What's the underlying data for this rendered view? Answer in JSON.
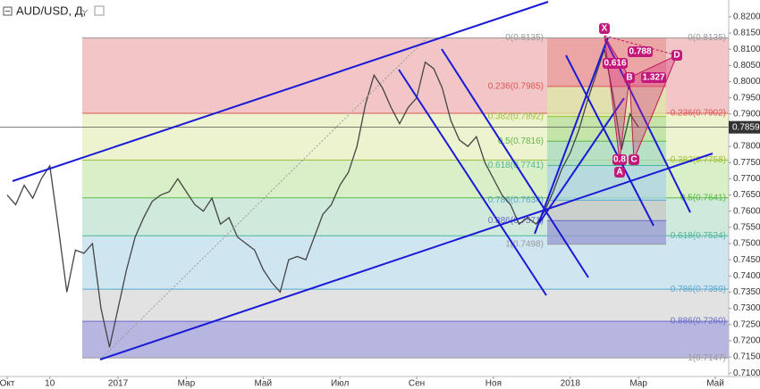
{
  "chart_data": {
    "type": "line",
    "title": "AUD/USD, Д,",
    "categories": [
      "Окт",
      null,
      null,
      null,
      null,
      "10",
      null,
      null,
      null,
      null,
      null,
      null,
      null,
      "2017",
      null,
      null,
      null,
      null,
      null,
      null,
      null,
      "Мар",
      null,
      null,
      null,
      null,
      null,
      null,
      null,
      null,
      "Май",
      null,
      null,
      null,
      null,
      null,
      null,
      null,
      null,
      "Июл",
      null,
      null,
      null,
      null,
      null,
      null,
      null,
      null,
      "Сен",
      null,
      null,
      null,
      null,
      null,
      null,
      null,
      null,
      "Ноя",
      null,
      null,
      null,
      null,
      null,
      null,
      null,
      null,
      "2018",
      null,
      null,
      null,
      null,
      null,
      null,
      null,
      "Мар",
      null,
      null,
      null,
      null,
      null,
      null,
      null,
      null,
      "Май"
    ],
    "series": [
      {
        "color": "#444444",
        "values": [
          0.765,
          0.762,
          0.768,
          0.764,
          0.77,
          0.774,
          0.755,
          0.735,
          0.748,
          0.747,
          0.75,
          0.73,
          0.718,
          0.73,
          0.742,
          0.752,
          0.758,
          0.763,
          0.765,
          0.766,
          0.77,
          0.766,
          0.762,
          0.76,
          0.764,
          0.756,
          0.758,
          0.752,
          0.75,
          0.748,
          0.742,
          0.738,
          0.735,
          0.745,
          0.746,
          0.745,
          0.752,
          0.759,
          0.762,
          0.768,
          0.772,
          0.78,
          0.793,
          0.802,
          0.798,
          0.792,
          0.787,
          0.792,
          0.795,
          0.806,
          0.804,
          0.798,
          0.788,
          0.782,
          0.78,
          0.783,
          0.775,
          0.77,
          0.765,
          0.762,
          0.756,
          0.758,
          0.756,
          0.76,
          0.766,
          0.773,
          0.778,
          0.785,
          0.794,
          0.802,
          0.81,
          0.796,
          0.779,
          0.79,
          0.7859,
          null,
          null,
          null,
          null,
          null,
          null,
          null,
          null,
          null
        ]
      }
    ],
    "ylim": [
      0.7095,
      0.8252
    ],
    "yticks": [
      {
        "value": 0.82,
        "label": "0.8200"
      },
      {
        "value": 0.815,
        "label": "0.8150"
      },
      {
        "value": 0.81,
        "label": "0.8100"
      },
      {
        "value": 0.805,
        "label": "0.8050"
      },
      {
        "value": 0.8,
        "label": "0.8000"
      },
      {
        "value": 0.795,
        "label": "0.7950"
      },
      {
        "value": 0.79,
        "label": "0.7900"
      },
      {
        "value": 0.785,
        "label": "0.7850"
      },
      {
        "value": 0.78,
        "label": "0.7800"
      },
      {
        "value": 0.775,
        "label": "0.7750"
      },
      {
        "value": 0.77,
        "label": "0.7700"
      },
      {
        "value": 0.765,
        "label": "0.7650"
      },
      {
        "value": 0.76,
        "label": "0.7600"
      },
      {
        "value": 0.755,
        "label": "0.7550"
      },
      {
        "value": 0.75,
        "label": "0.7500"
      },
      {
        "value": 0.745,
        "label": "0.7450"
      },
      {
        "value": 0.74,
        "label": "0.7400"
      },
      {
        "value": 0.735,
        "label": "0.7350"
      },
      {
        "value": 0.73,
        "label": "0.7300"
      },
      {
        "value": 0.725,
        "label": "0.7250"
      },
      {
        "value": 0.72,
        "label": "0.7200"
      },
      {
        "value": 0.715,
        "label": "0.7150"
      },
      {
        "value": 0.71,
        "label": "0.7100"
      }
    ],
    "last_price": {
      "value": 0.7859,
      "label": "0.7859"
    },
    "fib_main": {
      "levels": [
        {
          "value": 0.8135,
          "label": "0(0.8135)"
        },
        {
          "value": 0.7902,
          "label": "0.236(0.7902)"
        },
        {
          "value": 0.7758,
          "label": "0.382(0.7758)"
        },
        {
          "value": 0.7641,
          "label": "0.5(0.7641)"
        },
        {
          "value": 0.7524,
          "label": "0.618(0.7524)"
        },
        {
          "value": 0.7359,
          "label": "0.786(0.7359)"
        },
        {
          "value": 0.726,
          "label": "0.886(0.7260)"
        },
        {
          "value": 0.7147,
          "label": "1(0.7147)"
        }
      ],
      "line_colors": [
        "#999999",
        "#e05555",
        "#9cbf3a",
        "#5cb84a",
        "#4fb59a",
        "#5aa8d0",
        "#6a6acc",
        "#999999"
      ],
      "band_colors": [
        "#f2c6c6",
        "#eef3cf",
        "#d9efc7",
        "#cfeadc",
        "#cfe6f1",
        "#e2e2e2",
        "#b6b6e0"
      ]
    },
    "fib_inner": {
      "levels": [
        {
          "value": 0.8135,
          "label": "0(0.8135)"
        },
        {
          "value": 0.7985,
          "label": "0.236(0.7985)"
        },
        {
          "value": 0.7892,
          "label": "0.382(0.7892)"
        },
        {
          "value": 0.7816,
          "label": "0.5(0.7816)"
        },
        {
          "value": 0.7741,
          "label": "0.618(0.7741)"
        },
        {
          "value": 0.7634,
          "label": "0.786(0.7634)"
        },
        {
          "value": 0.7571,
          "label": "0.886(0.7571)"
        },
        {
          "value": 0.7498,
          "label": "1(0.7498)"
        }
      ],
      "line_colors": [
        "#999999",
        "#e05555",
        "#9cbf3a",
        "#5cb84a",
        "#4fb59a",
        "#5aa8d0",
        "#6a6acc",
        "#999999"
      ],
      "band_colors": [
        "#e99a9a",
        "#dbe8a6",
        "#b5df9c",
        "#a6d9c0",
        "#a9d3e6",
        "#c8c8c8",
        "#9898d2"
      ]
    },
    "pattern": {
      "points": [
        "X",
        "A",
        "B",
        "C",
        "D"
      ],
      "ratios": [
        "0.788",
        "0.616",
        "1.327",
        "0.8"
      ]
    }
  }
}
